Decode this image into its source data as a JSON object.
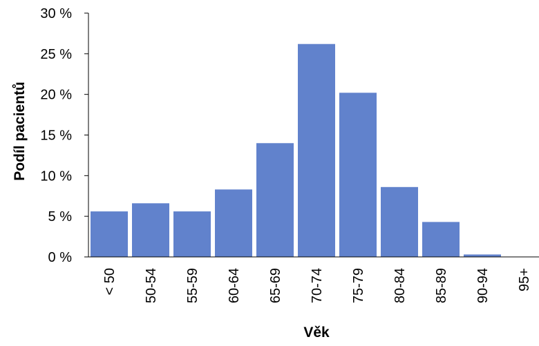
{
  "chart_data": {
    "type": "bar",
    "categories": [
      "< 50",
      "50-54",
      "55-59",
      "60-64",
      "65-69",
      "70-74",
      "75-79",
      "80-84",
      "85-89",
      "90-94",
      "95+"
    ],
    "values": [
      5.6,
      6.6,
      5.6,
      8.3,
      14.0,
      26.2,
      20.2,
      8.6,
      4.3,
      0.3,
      0.0
    ],
    "value_unit": "%",
    "title": "",
    "xlabel": "Věk",
    "ylabel": "Podíl pacientů",
    "ylim": [
      0,
      30
    ],
    "yticks": [
      "0 %",
      "5 %",
      "10 %",
      "15 %",
      "20 %",
      "25 %",
      "30 %"
    ],
    "bar_color": "#6182cc",
    "grid": false,
    "legend": "none"
  }
}
